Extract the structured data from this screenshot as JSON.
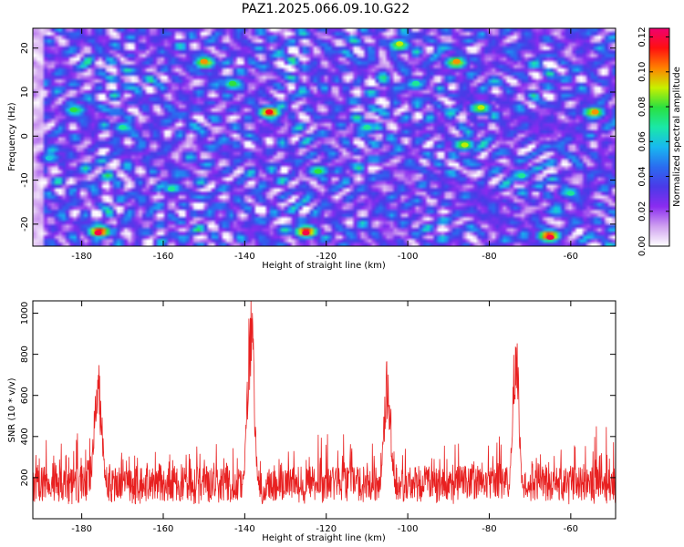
{
  "title": "PAZ1.2025.066.09.10.G22",
  "colors": {
    "snr_line": "#e82020",
    "colormap": [
      "#ffffff",
      "#cfa0f0",
      "#8a2cf0",
      "#4a3ae8",
      "#2a6cf0",
      "#18b8f0",
      "#1ae8a8",
      "#2ae040",
      "#c8f000",
      "#ff8000",
      "#ff1010",
      "#f00070"
    ]
  },
  "chart_data": [
    {
      "type": "heatmap",
      "name": "spectrogram",
      "xlabel": "Height of straight line (km)",
      "ylabel": "Frequency (Hz)",
      "xlim": [
        -192,
        -49
      ],
      "ylim": [
        -25,
        24.5
      ],
      "xticks": [
        "-180",
        "-160",
        "-140",
        "-120",
        "-100",
        "-80",
        "-60"
      ],
      "xtick_values": [
        -180,
        -160,
        -140,
        -120,
        -100,
        -80,
        -60
      ],
      "yticks": [
        "-20",
        "-10",
        "0",
        "10",
        "20"
      ],
      "ytick_values": [
        -20,
        -10,
        0,
        10,
        20
      ],
      "colorbar": {
        "label": "Normalized spectral amplitude",
        "range": [
          0,
          0.125
        ],
        "ticks": [
          "0.00",
          "0.02",
          "0.04",
          "0.06",
          "0.08",
          "0.10",
          "0.12"
        ],
        "tick_values": [
          0,
          0.02,
          0.04,
          0.06,
          0.08,
          0.1,
          0.12
        ]
      },
      "hotspots": [
        {
          "x": -176,
          "y": -22,
          "v": 0.12
        },
        {
          "x": -134,
          "y": 5.5,
          "v": 0.115
        },
        {
          "x": -125,
          "y": -22,
          "v": 0.12
        },
        {
          "x": -65,
          "y": -23,
          "v": 0.12
        },
        {
          "x": -150,
          "y": 17,
          "v": 0.1
        },
        {
          "x": -88,
          "y": 17,
          "v": 0.1
        },
        {
          "x": -54,
          "y": 5.5,
          "v": 0.1
        },
        {
          "x": -102,
          "y": 21,
          "v": 0.09
        },
        {
          "x": -86,
          "y": -2,
          "v": 0.09
        },
        {
          "x": -82,
          "y": 6.5,
          "v": 0.09
        },
        {
          "x": -182,
          "y": 6,
          "v": 0.08
        },
        {
          "x": -170,
          "y": 2,
          "v": 0.07
        },
        {
          "x": -143,
          "y": 12,
          "v": 0.08
        },
        {
          "x": -122,
          "y": -8,
          "v": 0.08
        },
        {
          "x": -110,
          "y": 2,
          "v": 0.07
        },
        {
          "x": -98,
          "y": 12,
          "v": 0.07
        },
        {
          "x": -72,
          "y": -9,
          "v": 0.07
        },
        {
          "x": -60,
          "y": -13,
          "v": 0.07
        },
        {
          "x": -158,
          "y": -12,
          "v": 0.07
        },
        {
          "x": -188,
          "y": -5,
          "v": 0.06
        }
      ]
    },
    {
      "type": "line",
      "name": "snr",
      "xlabel": "Height of straight line (km)",
      "ylabel": "SNR (10 * v/v)",
      "xlim": [
        -192,
        -49
      ],
      "ylim": [
        0,
        1060
      ],
      "xticks": [
        "-180",
        "-160",
        "-140",
        "-120",
        "-100",
        "-80",
        "-60"
      ],
      "xtick_values": [
        -180,
        -160,
        -140,
        -120,
        -100,
        -80,
        -60
      ],
      "yticks": [
        "200",
        "400",
        "600",
        "800",
        "1000"
      ],
      "ytick_values": [
        200,
        400,
        600,
        800,
        1000
      ],
      "baseline": {
        "mean": 170,
        "noise": 170
      },
      "peaks": [
        {
          "x": -176,
          "y": 720,
          "width": 1.0
        },
        {
          "x": -138.5,
          "y": 1050,
          "width": 0.9
        },
        {
          "x": -105,
          "y": 750,
          "width": 0.9
        },
        {
          "x": -73.5,
          "y": 900,
          "width": 0.8
        }
      ],
      "envelope": [
        [
          -192,
          380
        ],
        [
          -181,
          470
        ],
        [
          -170,
          350
        ],
        [
          -146,
          420
        ],
        [
          -135,
          330
        ],
        [
          -120,
          460
        ],
        [
          -100,
          380
        ],
        [
          -90,
          400
        ],
        [
          -85,
          420
        ],
        [
          -65,
          440
        ],
        [
          -49,
          500
        ]
      ]
    }
  ]
}
